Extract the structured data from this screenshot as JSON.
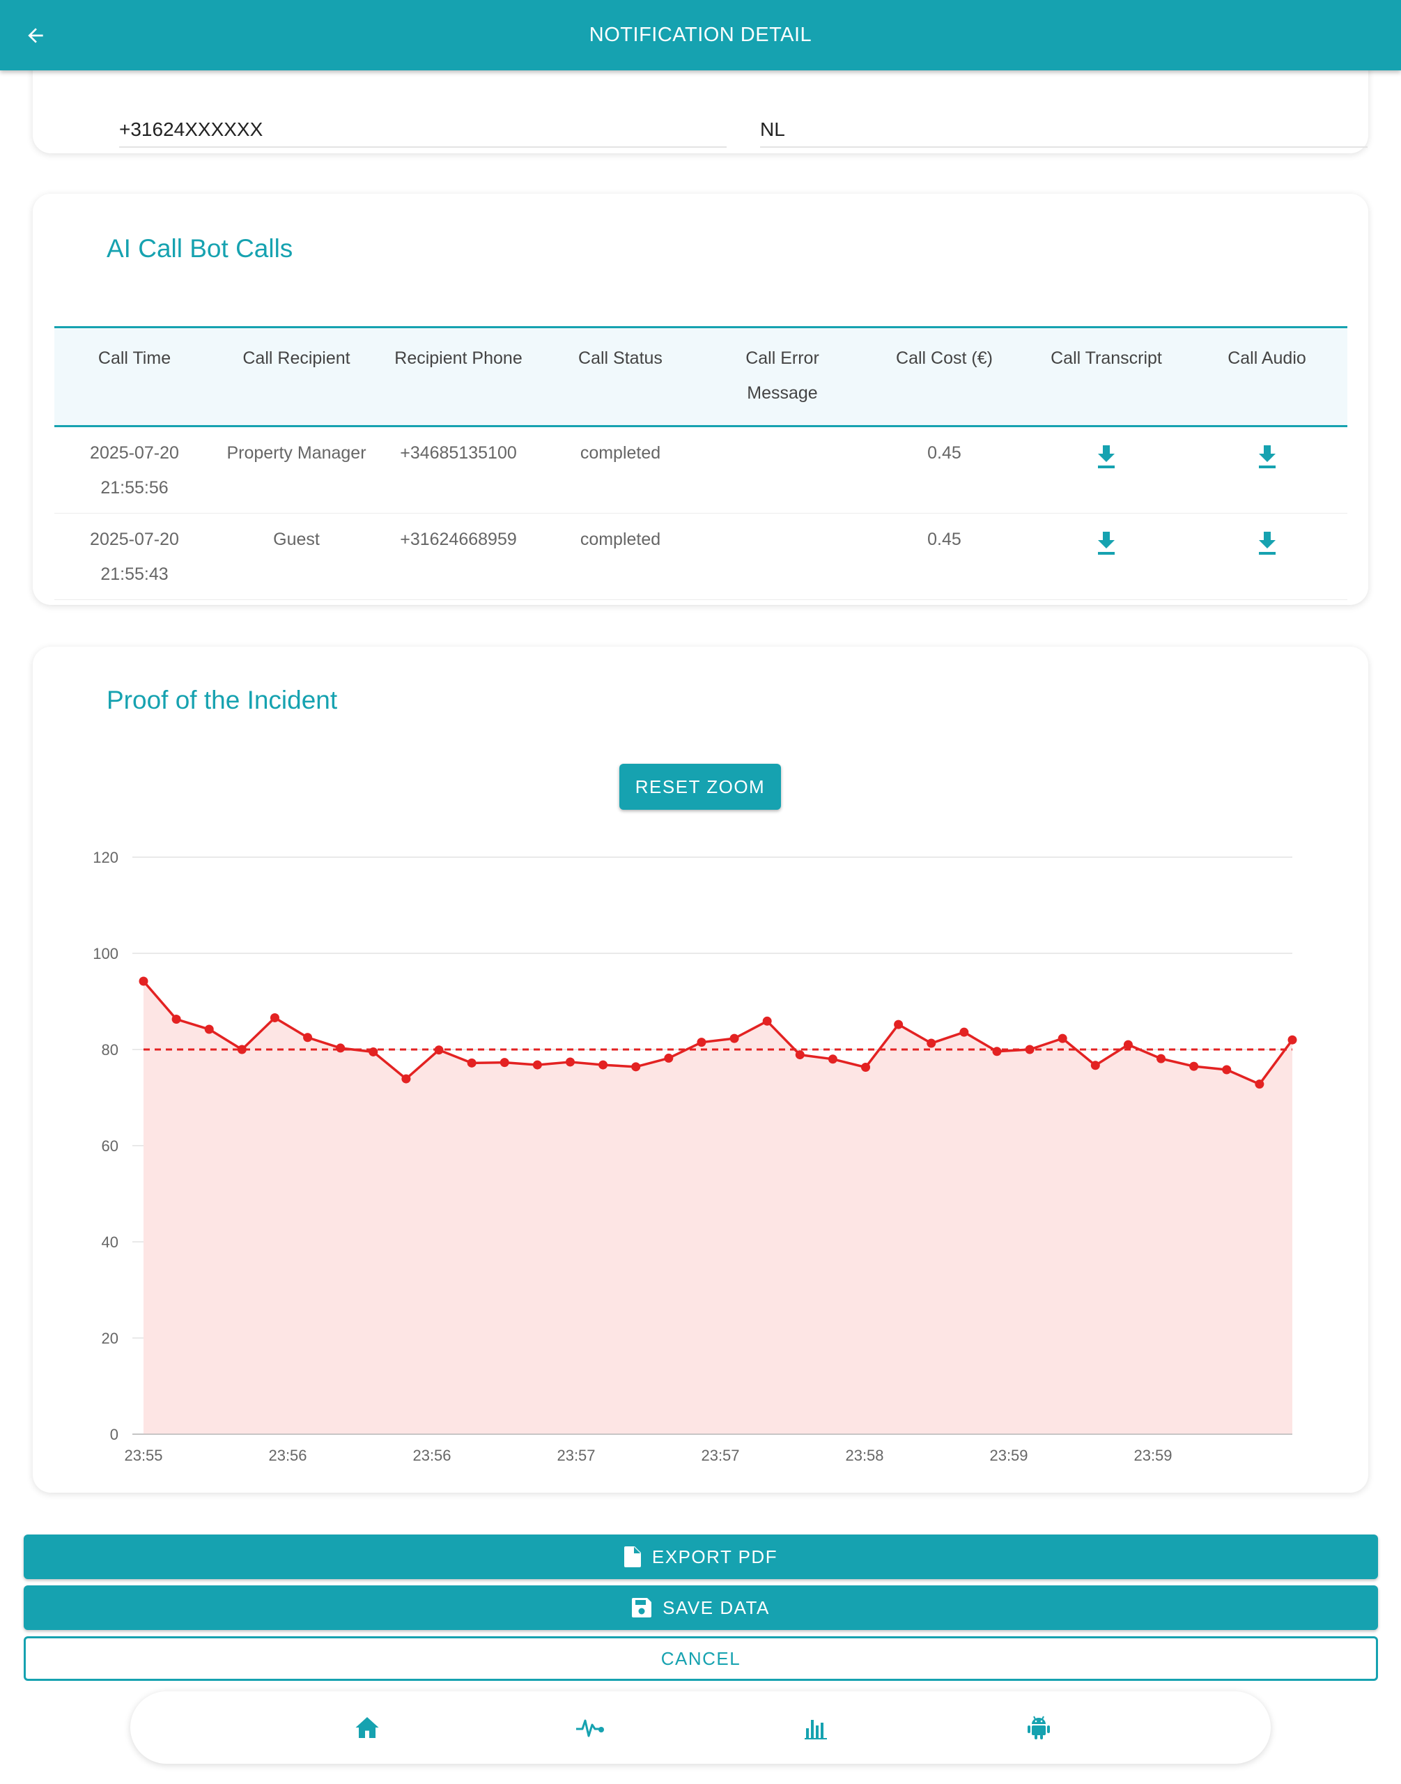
{
  "header": {
    "title": "NOTIFICATION DETAIL",
    "back_icon": "arrow-left-icon"
  },
  "contact": {
    "phone_value": "+31624XXXXXX",
    "country_value": "NL"
  },
  "calls_section": {
    "title": "AI Call Bot Calls",
    "columns": [
      "Call Time",
      "Call Recipient",
      "Recipient Phone",
      "Call Status",
      "Call Error Message",
      "Call Cost (€)",
      "Call Transcript",
      "Call Audio"
    ],
    "rows": [
      {
        "date": "2025-07-20",
        "time": "21:55:56",
        "recipient": "Property Manager",
        "phone": "+34685135100",
        "status": "completed",
        "error": "",
        "cost": "0.45"
      },
      {
        "date": "2025-07-20",
        "time": "21:55:43",
        "recipient": "Guest",
        "phone": "+31624668959",
        "status": "completed",
        "error": "",
        "cost": "0.45"
      }
    ]
  },
  "proof_section": {
    "title": "Proof of the Incident",
    "reset_zoom_label": "RESET ZOOM"
  },
  "chart_data": {
    "type": "area",
    "ylim": [
      0,
      120
    ],
    "yticks": [
      0,
      20,
      40,
      60,
      80,
      100,
      120
    ],
    "x_tick_labels": [
      "23:55",
      "23:56",
      "23:56",
      "23:57",
      "23:57",
      "23:58",
      "23:59",
      "23:59"
    ],
    "grid": true,
    "threshold": 80,
    "colors": {
      "line": "#e32222",
      "fill": "#fde5e4",
      "threshold": "#e32222",
      "grid": "#e2e2e2"
    },
    "series": [
      {
        "values": [
          94.2,
          86.3,
          84.2,
          80.0,
          86.6,
          82.5,
          80.3,
          79.5,
          73.9,
          79.9,
          77.2,
          77.3,
          76.8,
          77.4,
          76.8,
          76.4,
          78.2,
          81.5,
          82.3,
          85.9,
          78.9,
          78.0,
          76.3,
          85.2,
          81.3,
          83.6,
          79.6,
          80.0,
          82.3,
          76.7,
          81.0,
          78.1,
          76.5,
          75.8,
          72.8,
          82.0
        ]
      }
    ]
  },
  "actions": {
    "export_label": "EXPORT PDF",
    "save_label": "SAVE DATA",
    "cancel_label": "CANCEL"
  },
  "bottom_nav": {
    "items": [
      "home-icon",
      "heartbeat-icon",
      "bar-chart-icon",
      "android-icon"
    ]
  },
  "brand_color": "#16a2b0"
}
